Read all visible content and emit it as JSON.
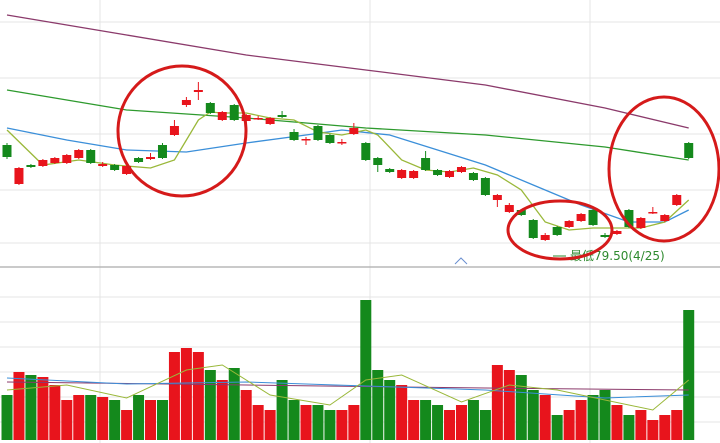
{
  "chart_data": {
    "type": "candlestick",
    "up_color": "#e8141c",
    "down_color": "#14891c",
    "ylim": [
      78.3,
      91.55
    ],
    "open": [
      84.3,
      82.35,
      83.3,
      83.25,
      83.4,
      83.4,
      83.65,
      84.05,
      83.25,
      83.3,
      82.85,
      83.65,
      83.6,
      84.3,
      84.8,
      86.3,
      86.95,
      86.4,
      85.55,
      86.3,
      85.5,
      85.6,
      85.35,
      85.8,
      84.95,
      84.55,
      85.25,
      84.8,
      84.4,
      84.85,
      84.4,
      83.65,
      83.1,
      82.65,
      82.65,
      83.65,
      83.05,
      82.7,
      82.95,
      82.9,
      82.65,
      81.55,
      80.95,
      81.05,
      80.55,
      79.55,
      80.2,
      80.2,
      80.5,
      81.05,
      79.8,
      79.85,
      81.05,
      80.15,
      80.9,
      80.5,
      81.3,
      84.4
    ],
    "close": [
      83.7,
      83.15,
      83.2,
      83.55,
      83.65,
      83.8,
      84.05,
      83.4,
      83.35,
      83.05,
      83.25,
      83.45,
      83.7,
      83.65,
      85.25,
      86.55,
      87.05,
      85.9,
      85.95,
      85.55,
      85.8,
      85.65,
      85.65,
      85.7,
      84.55,
      84.6,
      84.55,
      84.4,
      84.45,
      85.15,
      83.55,
      83.3,
      82.95,
      83.05,
      83.0,
      83.05,
      82.8,
      83.0,
      83.2,
      82.55,
      81.8,
      81.8,
      81.3,
      80.8,
      79.65,
      79.8,
      79.8,
      80.5,
      80.85,
      80.3,
      79.7,
      80.0,
      80.2,
      80.65,
      80.95,
      80.8,
      81.8,
      83.65
    ],
    "high": [
      84.4,
      83.2,
      83.35,
      83.6,
      83.7,
      83.85,
      84.1,
      84.1,
      83.45,
      83.35,
      83.3,
      83.7,
      83.9,
      84.4,
      85.55,
      86.7,
      87.45,
      86.45,
      86.0,
      86.35,
      85.85,
      85.75,
      85.7,
      86.0,
      85.1,
      84.7,
      85.3,
      84.85,
      84.6,
      85.4,
      84.45,
      83.7,
      83.15,
      83.1,
      83.05,
      84.0,
      83.1,
      83.05,
      83.25,
      82.95,
      82.7,
      81.85,
      81.4,
      81.1,
      80.6,
      79.9,
      80.25,
      80.55,
      80.9,
      81.1,
      79.9,
      80.05,
      81.1,
      80.7,
      81.2,
      80.85,
      81.85,
      84.45
    ],
    "low": [
      83.6,
      82.3,
      83.15,
      83.2,
      83.35,
      83.35,
      83.6,
      83.35,
      83.2,
      83.0,
      82.8,
      83.4,
      83.55,
      83.6,
      84.75,
      86.2,
      86.55,
      85.85,
      85.5,
      85.5,
      85.45,
      85.55,
      85.3,
      85.65,
      84.5,
      84.3,
      84.5,
      84.35,
      84.3,
      84.8,
      83.5,
      82.95,
      82.9,
      82.6,
      82.6,
      83.0,
      82.75,
      82.65,
      82.9,
      82.5,
      81.75,
      81.2,
      80.9,
      80.75,
      79.6,
      79.5,
      79.75,
      80.15,
      80.45,
      80.25,
      79.65,
      79.8,
      80.15,
      80.1,
      80.85,
      80.45,
      81.25,
      83.6
    ],
    "ma_lines": [
      {
        "color": "#8b3a6b",
        "x": [
          0,
          10,
          20,
          30,
          40,
          50,
          57
        ],
        "values": [
          90.8,
          89.8,
          88.8,
          88.05,
          87.3,
          86.15,
          85.15
        ]
      },
      {
        "color": "#2e9a2e",
        "x": [
          0,
          10,
          20,
          30,
          40,
          50,
          57
        ],
        "values": [
          87.05,
          86.05,
          85.65,
          85.15,
          84.8,
          84.2,
          83.55
        ]
      },
      {
        "color": "#3b8fd9",
        "x": [
          0,
          5,
          10,
          15,
          20,
          25,
          28,
          32,
          36,
          40,
          44,
          48,
          52,
          55,
          57
        ],
        "values": [
          85.15,
          84.55,
          84.05,
          83.95,
          84.4,
          84.8,
          85.05,
          84.8,
          84.05,
          83.3,
          82.3,
          81.3,
          80.45,
          80.45,
          81.05
        ]
      },
      {
        "color": "#9ab83a",
        "x": [
          0,
          3,
          6,
          9,
          12,
          14,
          15,
          16,
          17,
          18,
          20,
          22,
          24,
          26,
          28,
          30,
          31,
          33,
          35,
          37,
          39,
          41,
          43,
          45,
          47,
          49,
          51,
          53,
          55,
          57
        ],
        "values": [
          85.05,
          83.3,
          83.55,
          83.3,
          83.15,
          83.55,
          84.55,
          85.55,
          85.95,
          85.9,
          85.9,
          85.65,
          85.55,
          84.95,
          84.8,
          85.05,
          84.8,
          83.55,
          83.05,
          82.95,
          83.15,
          82.8,
          82.05,
          80.45,
          80.05,
          80.15,
          80.15,
          80.15,
          80.45,
          81.55
        ]
      }
    ],
    "annotation": "最低79.50(4/25)",
    "volume": {
      "ylim": [
        0,
        165
      ],
      "values": [
        45,
        68,
        65,
        63,
        55,
        40,
        45,
        45,
        43,
        40,
        30,
        45,
        40,
        40,
        88,
        92,
        88,
        70,
        60,
        72,
        50,
        35,
        30,
        60,
        40,
        35,
        35,
        30,
        30,
        35,
        140,
        70,
        60,
        55,
        40,
        40,
        35,
        30,
        35,
        40,
        30,
        75,
        70,
        65,
        50,
        45,
        25,
        30,
        40,
        45,
        50,
        35,
        25,
        30,
        20,
        25,
        30,
        130
      ],
      "ma_lines": [
        {
          "color": "#8b3a6b",
          "x": [
            0,
            20,
            40,
            57
          ],
          "values": [
            58,
            55,
            52,
            50
          ]
        },
        {
          "color": "#3b8fd9",
          "x": [
            0,
            10,
            20,
            30,
            40,
            50,
            57
          ],
          "values": [
            62,
            56,
            58,
            54,
            50,
            42,
            45
          ]
        },
        {
          "color": "#9ab83a",
          "x": [
            0,
            5,
            10,
            15,
            18,
            22,
            27,
            30,
            33,
            38,
            42,
            46,
            50,
            54,
            57
          ],
          "values": [
            50,
            55,
            42,
            70,
            75,
            45,
            35,
            60,
            65,
            38,
            55,
            50,
            40,
            30,
            60
          ]
        }
      ]
    }
  }
}
